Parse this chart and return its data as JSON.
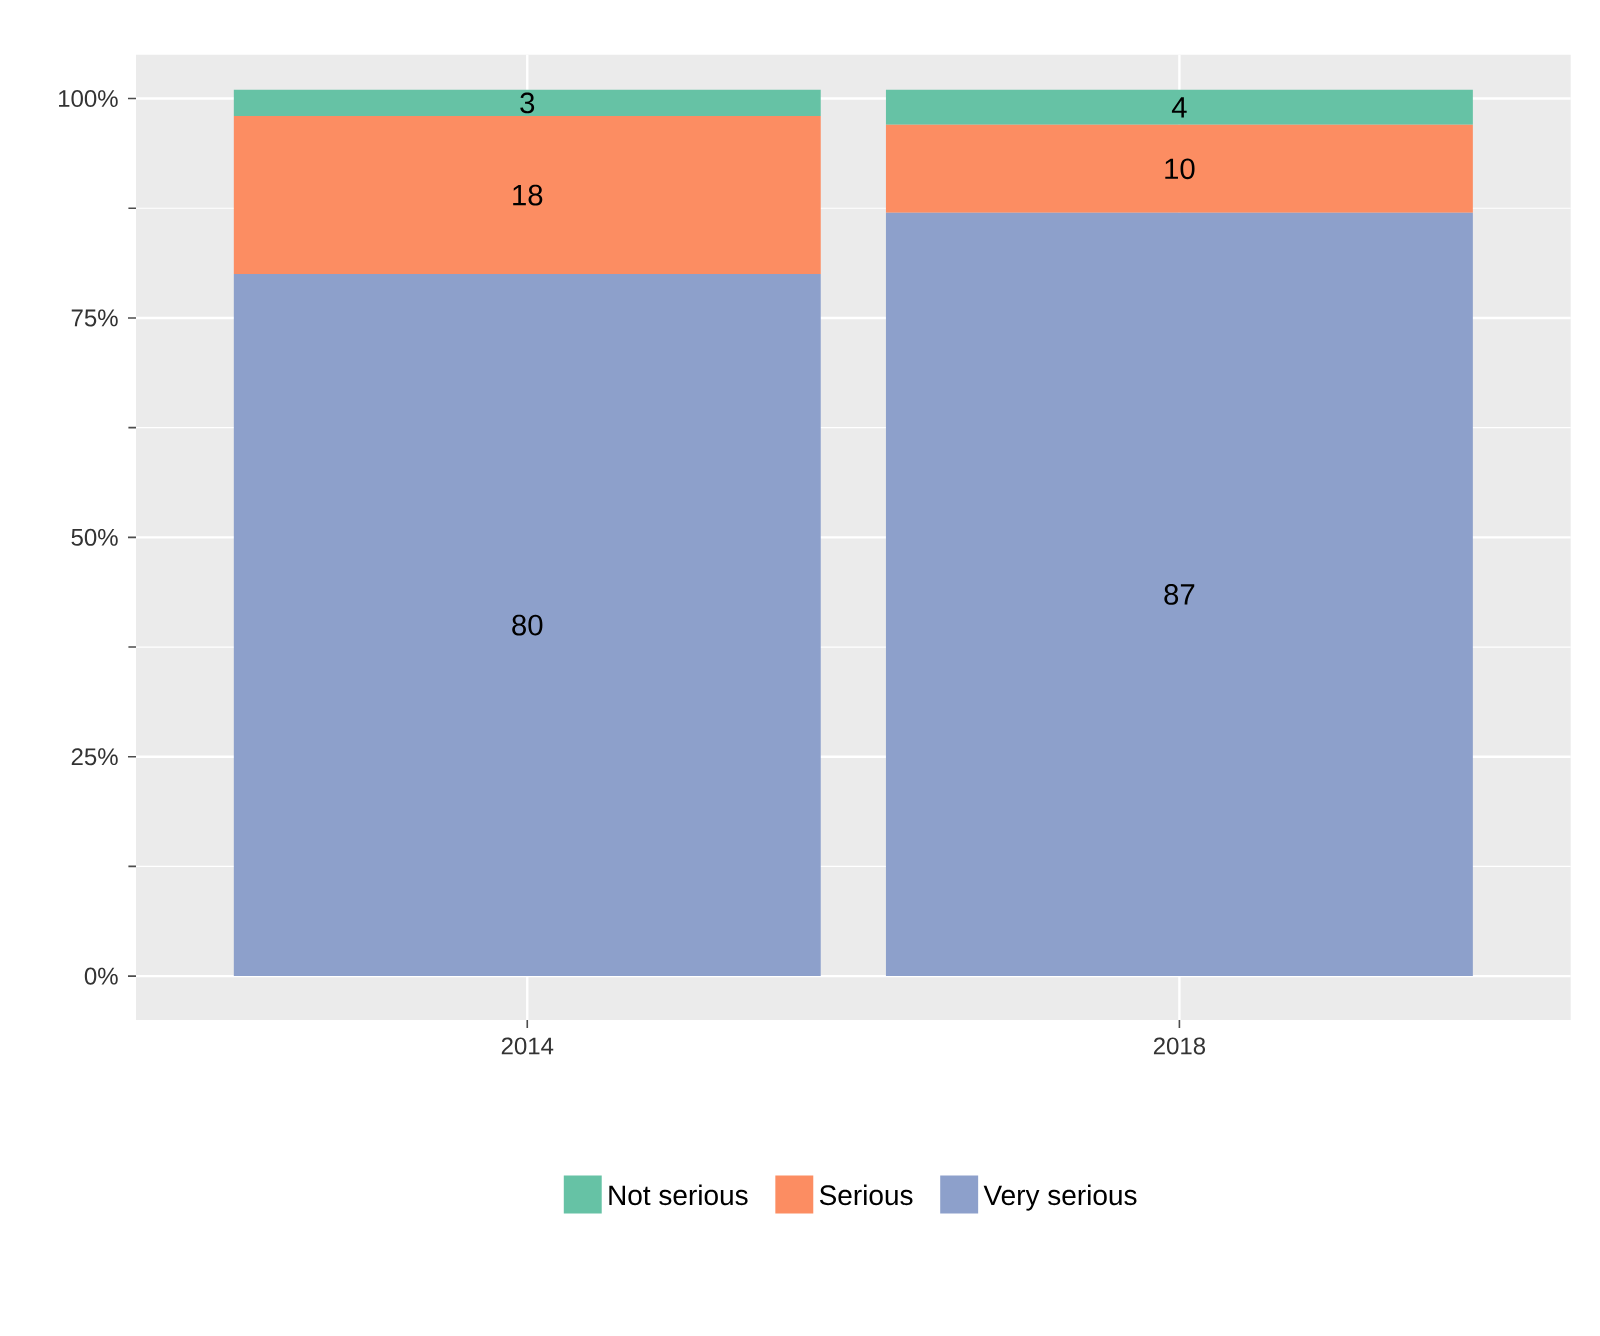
{
  "chart_data": {
    "type": "bar",
    "stacked": true,
    "categories": [
      "2014",
      "2018"
    ],
    "series": [
      {
        "name": "Very serious",
        "color": "#8da0cb",
        "values": [
          80,
          87
        ]
      },
      {
        "name": "Serious",
        "color": "#fc8d62",
        "values": [
          18,
          10
        ]
      },
      {
        "name": "Not serious",
        "color": "#66c2a5",
        "values": [
          3,
          4
        ]
      }
    ],
    "ylim": [
      -5,
      105
    ],
    "yticks": [
      {
        "value": 0,
        "label": "0%"
      },
      {
        "value": 25,
        "label": "25%"
      },
      {
        "value": 50,
        "label": "50%"
      },
      {
        "value": 75,
        "label": "75%"
      },
      {
        "value": 100,
        "label": "100%"
      }
    ],
    "grid": true,
    "legend": "bottom",
    "data_labels": true
  }
}
